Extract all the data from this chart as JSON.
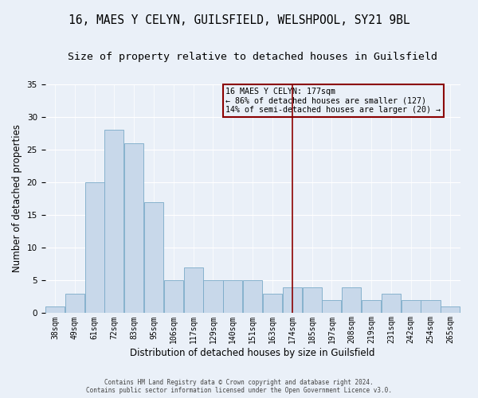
{
  "title1": "16, MAES Y CELYN, GUILSFIELD, WELSHPOOL, SY21 9BL",
  "title2": "Size of property relative to detached houses in Guilsfield",
  "xlabel": "Distribution of detached houses by size in Guilsfield",
  "ylabel": "Number of detached properties",
  "categories": [
    "38sqm",
    "49sqm",
    "61sqm",
    "72sqm",
    "83sqm",
    "95sqm",
    "106sqm",
    "117sqm",
    "129sqm",
    "140sqm",
    "151sqm",
    "163sqm",
    "174sqm",
    "185sqm",
    "197sqm",
    "208sqm",
    "219sqm",
    "231sqm",
    "242sqm",
    "254sqm",
    "265sqm"
  ],
  "values": [
    1,
    3,
    20,
    28,
    26,
    17,
    5,
    7,
    5,
    5,
    5,
    3,
    4,
    4,
    2,
    4,
    2,
    3,
    2,
    2,
    1
  ],
  "bar_color": "#c8d8ea",
  "bar_edge_color": "#7aaac8",
  "vline_index": 12,
  "vline_color": "#8b0000",
  "annotation_title": "16 MAES Y CELYN: 177sqm",
  "annotation_line1": "← 86% of detached houses are smaller (127)",
  "annotation_line2": "14% of semi-detached houses are larger (20) →",
  "annotation_box_color": "#8b0000",
  "background_color": "#eaf0f8",
  "footer1": "Contains HM Land Registry data © Crown copyright and database right 2024.",
  "footer2": "Contains public sector information licensed under the Open Government Licence v3.0.",
  "ylim": [
    0,
    35
  ],
  "title_fontsize": 10.5,
  "subtitle_fontsize": 9.5,
  "ylabel_fontsize": 8.5,
  "xlabel_fontsize": 8.5,
  "tick_fontsize": 7,
  "footer_fontsize": 5.5
}
